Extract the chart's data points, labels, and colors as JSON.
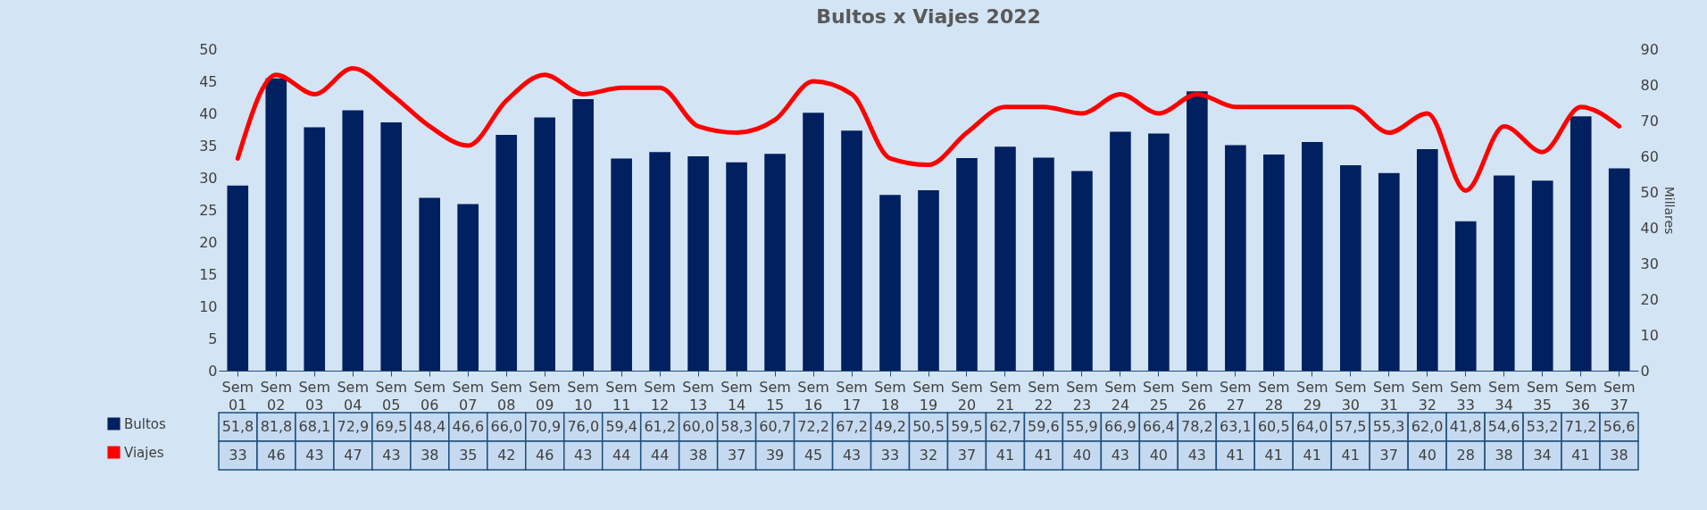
{
  "chart_data": {
    "type": "bar",
    "title": "Bultos x Viajes 2022",
    "y2label": "Millares",
    "categories": [
      "Sem 01",
      "Sem 02",
      "Sem 03",
      "Sem 04",
      "Sem 05",
      "Sem 06",
      "Sem 07",
      "Sem 08",
      "Sem 09",
      "Sem 10",
      "Sem 11",
      "Sem 12",
      "Sem 13",
      "Sem 14",
      "Sem 15",
      "Sem 16",
      "Sem 17",
      "Sem 18",
      "Sem 19",
      "Sem 20",
      "Sem 21",
      "Sem 22",
      "Sem 23",
      "Sem 24",
      "Sem 25",
      "Sem 26",
      "Sem 27",
      "Sem 28",
      "Sem 29",
      "Sem 30",
      "Sem 31",
      "Sem 32",
      "Sem 33",
      "Sem 34",
      "Sem 35",
      "Sem 36",
      "Sem 37"
    ],
    "series": [
      {
        "name": "Bultos",
        "axis": "y2",
        "color": "#002060",
        "values": [
          51.8,
          81.8,
          68.1,
          72.9,
          69.5,
          48.4,
          46.6,
          66.0,
          70.9,
          76.0,
          59.4,
          61.2,
          60.0,
          58.3,
          60.7,
          72.2,
          67.2,
          49.2,
          50.5,
          59.5,
          62.7,
          59.6,
          55.9,
          66.9,
          66.4,
          78.2,
          63.1,
          60.5,
          64.0,
          57.5,
          55.3,
          62.0,
          41.8,
          54.6,
          53.2,
          71.2,
          56.6
        ],
        "value_labels": [
          "51,8",
          "81,8",
          "68,1",
          "72,9",
          "69,5",
          "48,4",
          "46,6",
          "66,0",
          "70,9",
          "76,0",
          "59,4",
          "61,2",
          "60,0",
          "58,3",
          "60,7",
          "72,2",
          "67,2",
          "49,2",
          "50,5",
          "59,5",
          "62,7",
          "59,6",
          "55,9",
          "66,9",
          "66,4",
          "78,2",
          "63,1",
          "60,5",
          "64,0",
          "57,5",
          "55,3",
          "62,0",
          "41,8",
          "54,6",
          "53,2",
          "71,2",
          "56,6"
        ]
      },
      {
        "name": "Viajes",
        "type": "line",
        "color": "#ff0000",
        "values": [
          33,
          46,
          43,
          47,
          43,
          38,
          35,
          42,
          46,
          43,
          44,
          44,
          38,
          37,
          39,
          45,
          43,
          33,
          32,
          37,
          41,
          41,
          40,
          43,
          40,
          43,
          41,
          41,
          41,
          41,
          37,
          40,
          28,
          38,
          34,
          41,
          38
        ],
        "value_labels": [
          "33",
          "46",
          "43",
          "47",
          "43",
          "38",
          "35",
          "42",
          "46",
          "43",
          "44",
          "44",
          "38",
          "37",
          "39",
          "45",
          "43",
          "33",
          "32",
          "37",
          "41",
          "41",
          "40",
          "43",
          "40",
          "43",
          "41",
          "41",
          "41",
          "41",
          "37",
          "40",
          "28",
          "38",
          "34",
          "41",
          "38"
        ]
      }
    ],
    "ylim": [
      0,
      50
    ],
    "yticks": [
      0,
      5,
      10,
      15,
      20,
      25,
      30,
      35,
      40,
      45,
      50
    ],
    "y2lim": [
      0,
      90
    ],
    "y2ticks": [
      0,
      10,
      20,
      30,
      40,
      50,
      60,
      70,
      80,
      90
    ],
    "grid": false,
    "legend": "bottom left"
  }
}
